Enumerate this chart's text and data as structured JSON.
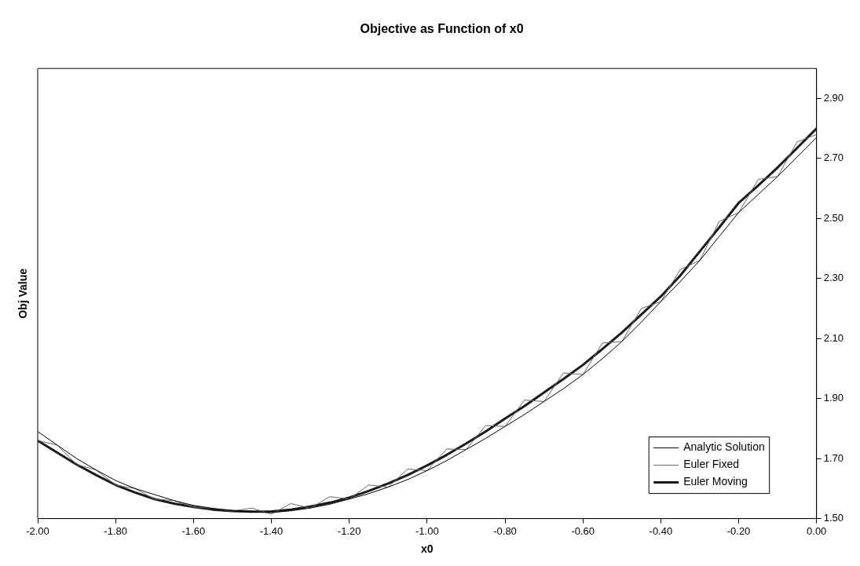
{
  "chart_data": {
    "type": "line",
    "title": "Objective as Function of x0",
    "xlabel": "x0",
    "ylabel": "Obj Value",
    "x": [
      -2.0,
      -1.95,
      -1.9,
      -1.85,
      -1.8,
      -1.75,
      -1.7,
      -1.65,
      -1.6,
      -1.55,
      -1.5,
      -1.45,
      -1.4,
      -1.35,
      -1.3,
      -1.25,
      -1.2,
      -1.15,
      -1.1,
      -1.05,
      -1.0,
      -0.95,
      -0.9,
      -0.85,
      -0.8,
      -0.75,
      -0.7,
      -0.65,
      -0.6,
      -0.55,
      -0.5,
      -0.45,
      -0.4,
      -0.35,
      -0.3,
      -0.25,
      -0.2,
      -0.15,
      -0.1,
      -0.05,
      0.0
    ],
    "series": [
      {
        "name": "Analytic Solution",
        "color": "#000000",
        "values": [
          1.79,
          1.745,
          1.7,
          1.662,
          1.627,
          1.6,
          1.58,
          1.56,
          1.544,
          1.534,
          1.527,
          1.522,
          1.52,
          1.526,
          1.535,
          1.548,
          1.565,
          1.583,
          1.605,
          1.63,
          1.66,
          1.693,
          1.73,
          1.767,
          1.807,
          1.847,
          1.89,
          1.933,
          1.98,
          2.033,
          2.09,
          2.155,
          2.223,
          2.29,
          2.36,
          2.44,
          2.52,
          2.58,
          2.64,
          2.705,
          2.77
        ]
      },
      {
        "name": "Euler Fixed",
        "color": "#666666",
        "values": [
          1.76,
          1.745,
          1.68,
          1.662,
          1.612,
          1.6,
          1.565,
          1.56,
          1.539,
          1.534,
          1.525,
          1.535,
          1.515,
          1.55,
          1.535,
          1.573,
          1.565,
          1.612,
          1.605,
          1.665,
          1.66,
          1.732,
          1.73,
          1.81,
          1.807,
          1.895,
          1.89,
          1.985,
          1.98,
          2.085,
          2.09,
          2.2,
          2.223,
          2.33,
          2.36,
          2.49,
          2.52,
          2.63,
          2.64,
          2.755,
          2.78
        ]
      },
      {
        "name": "Euler Moving",
        "color": "#1a1a1a",
        "values": [
          1.76,
          1.72,
          1.68,
          1.645,
          1.612,
          1.587,
          1.565,
          1.55,
          1.539,
          1.53,
          1.525,
          1.523,
          1.524,
          1.53,
          1.54,
          1.553,
          1.57,
          1.592,
          1.617,
          1.645,
          1.677,
          1.712,
          1.75,
          1.79,
          1.833,
          1.875,
          1.92,
          1.965,
          2.012,
          2.065,
          2.12,
          2.18,
          2.24,
          2.31,
          2.39,
          2.47,
          2.552,
          2.61,
          2.67,
          2.735,
          2.8
        ]
      }
    ],
    "xlim": [
      -2,
      0
    ],
    "xticks": [
      {
        "value": -2,
        "label": "-2.00"
      },
      {
        "value": -1.8,
        "label": "-1.80"
      },
      {
        "value": -1.6,
        "label": "-1.60"
      },
      {
        "value": -1.4,
        "label": "-1.40"
      },
      {
        "value": -1.2,
        "label": "-1.20"
      },
      {
        "value": -1,
        "label": "-1.00"
      },
      {
        "value": -0.8,
        "label": "-0.80"
      },
      {
        "value": -0.6,
        "label": "-0.60"
      },
      {
        "value": -0.4,
        "label": "-0.40"
      },
      {
        "value": -0.2,
        "label": "-0.20"
      },
      {
        "value": 0,
        "label": "0.00"
      }
    ],
    "ylim": [
      1.5,
      3.0
    ],
    "yticks": [
      {
        "value": 1.5,
        "label": "1.50"
      },
      {
        "value": 1.7,
        "label": "1.70"
      },
      {
        "value": 1.9,
        "label": "1.90"
      },
      {
        "value": 2.1,
        "label": "2.10"
      },
      {
        "value": 2.3,
        "label": "2.30"
      },
      {
        "value": 2.5,
        "label": "2.50"
      },
      {
        "value": 2.7,
        "label": "2.70"
      },
      {
        "value": 2.9,
        "label": "2.90"
      }
    ],
    "grid": false,
    "legend": "bottom right",
    "marker": "none",
    "line_style": "solid"
  }
}
